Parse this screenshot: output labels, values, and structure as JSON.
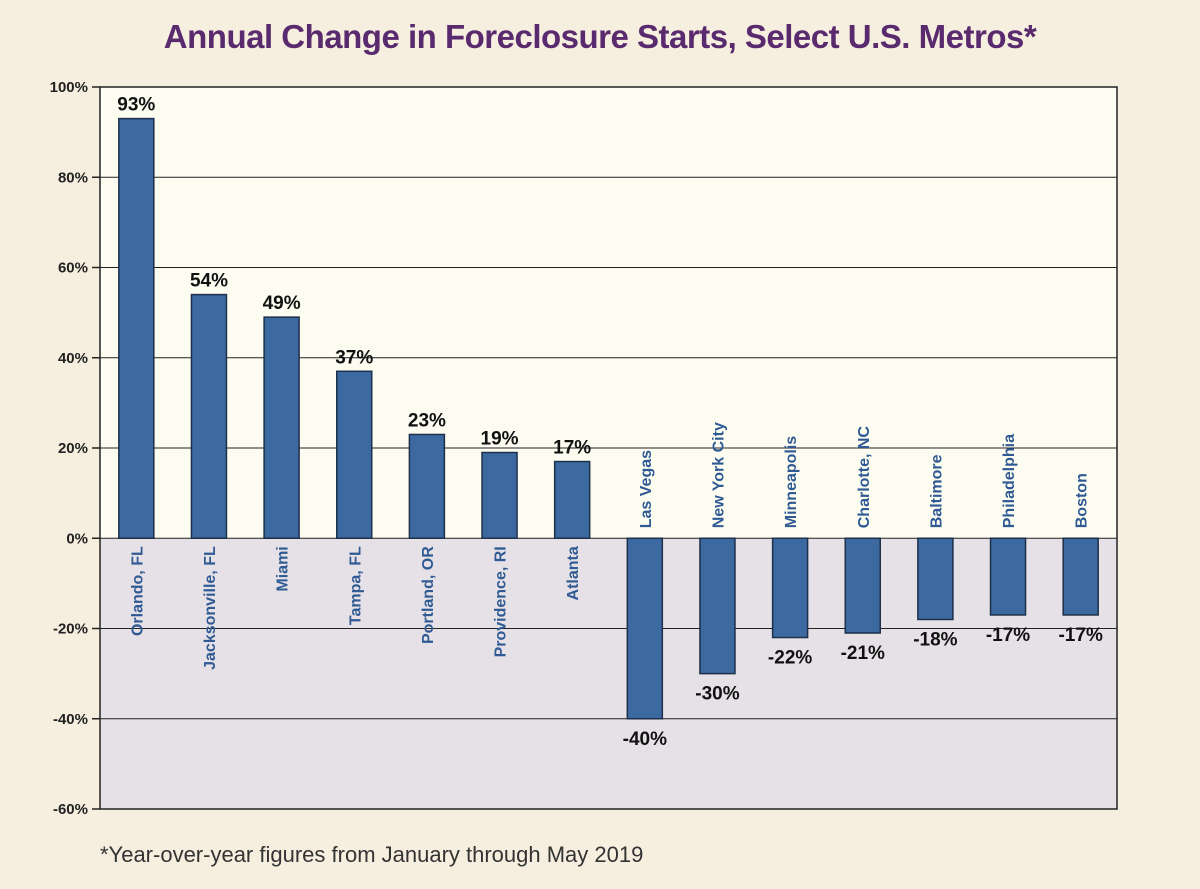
{
  "chart_data": {
    "type": "bar",
    "title": "Annual Change in Foreclosure Starts, Select U.S. Metros*",
    "footnote": "*Year-over-year figures from January through May 2019",
    "categories": [
      "Orlando, FL",
      "Jacksonville, FL",
      "Miami",
      "Tampa, FL",
      "Portland, OR",
      "Providence, RI",
      "Atlanta",
      "Las Vegas",
      "New York City",
      "Minneapolis",
      "Charlotte, NC",
      "Baltimore",
      "Philadelphia",
      "Boston"
    ],
    "values": [
      93,
      54,
      49,
      37,
      23,
      19,
      17,
      -40,
      -30,
      -22,
      -21,
      -18,
      -17,
      -17
    ],
    "data_labels": [
      "93%",
      "54%",
      "49%",
      "37%",
      "23%",
      "19%",
      "17%",
      "-40%",
      "-30%",
      "-22%",
      "-21%",
      "-18%",
      "-17%",
      "-17%"
    ],
    "ylim": [
      -60,
      100
    ],
    "yticks": [
      100,
      80,
      60,
      40,
      20,
      0,
      -20,
      -40,
      -60
    ],
    "ytick_labels": [
      "100%",
      "80%",
      "60%",
      "40%",
      "20%",
      "0%",
      "-20%",
      "-40%",
      "-60%"
    ],
    "xlabel": "",
    "ylabel": "",
    "grid": true,
    "colors": {
      "bar": "#3c6aa0",
      "bar_edge": "#1d2f4a",
      "positive_bg": "#fdfcf1",
      "negative_bg": "#e5e1e6",
      "title": "#5a2a6e",
      "category_label": "#2f5a93"
    }
  }
}
